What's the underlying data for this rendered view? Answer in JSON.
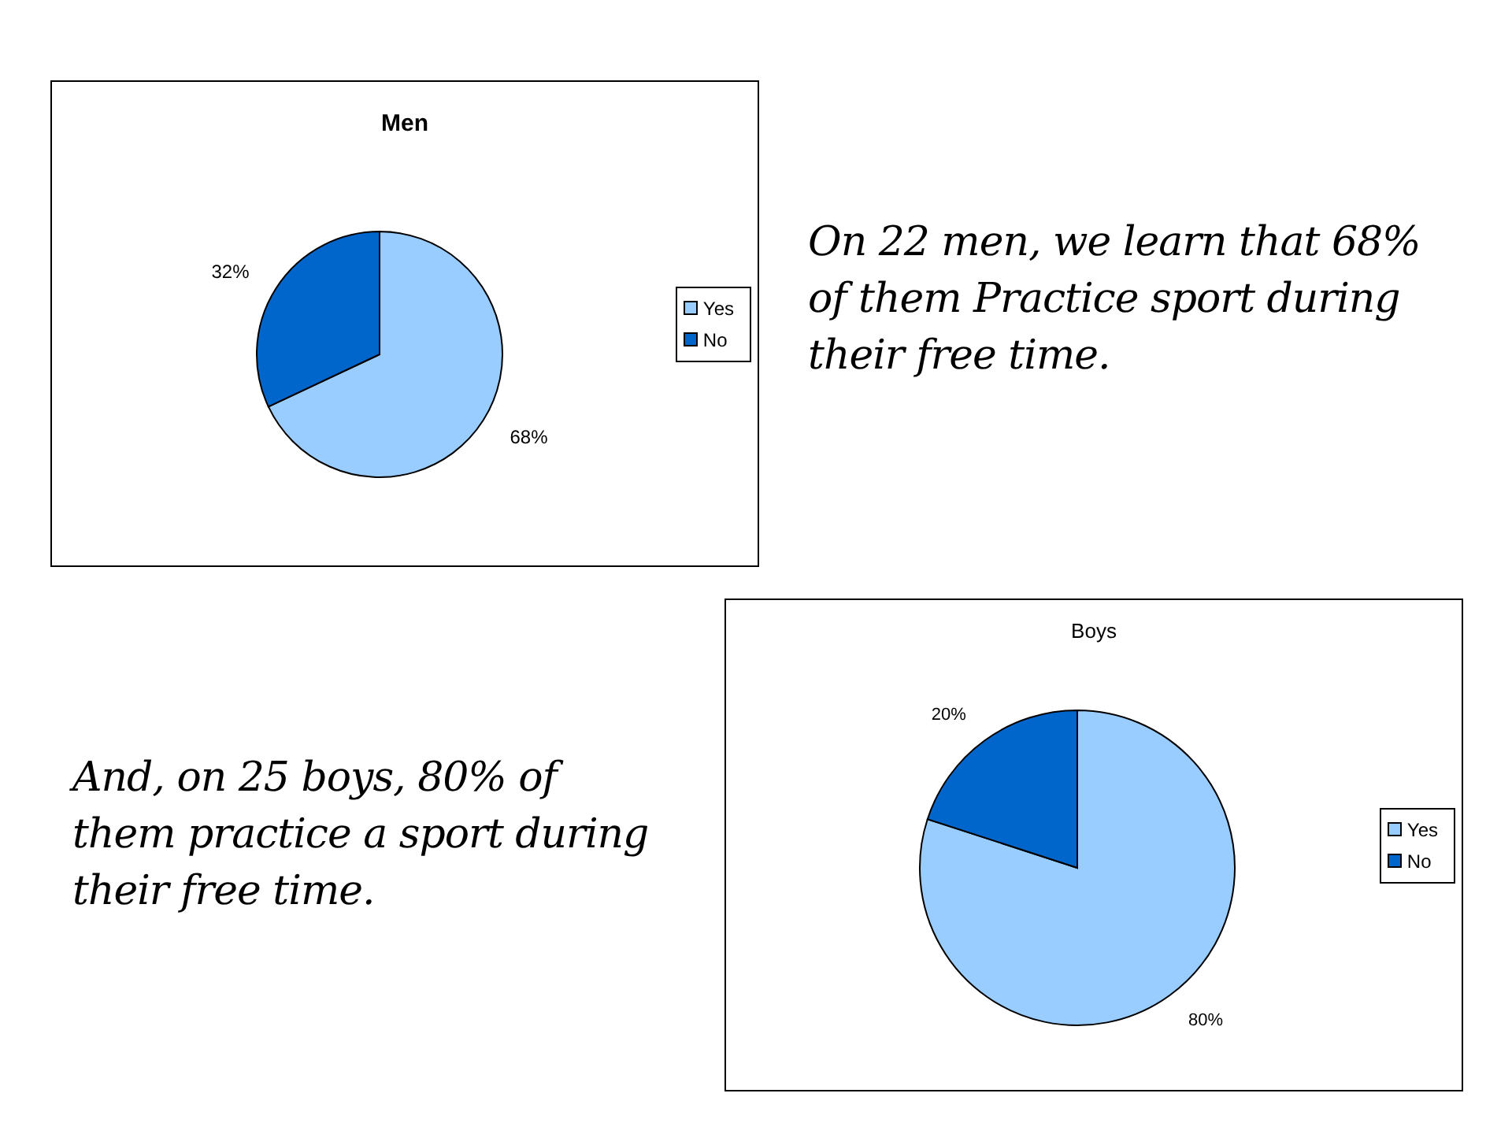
{
  "chart_data": [
    {
      "type": "pie",
      "title": "Men",
      "categories": [
        "Yes",
        "No"
      ],
      "values": [
        68,
        32
      ],
      "colors": [
        "#99ccff",
        "#0066cc"
      ],
      "value_labels": [
        "68%",
        "32%"
      ],
      "legend": "right",
      "annotations": [
        "On 22 men, we learn that 68% of them Practice sport during their free time."
      ]
    },
    {
      "type": "pie",
      "title": "Boys",
      "categories": [
        "Yes",
        "No"
      ],
      "values": [
        80,
        20
      ],
      "colors": [
        "#99ccff",
        "#0066cc"
      ],
      "value_labels": [
        "80%",
        "20%"
      ],
      "legend": "right",
      "annotations": [
        "And, on 25 boys, 80% of them practice a sport during their free time."
      ]
    }
  ]
}
